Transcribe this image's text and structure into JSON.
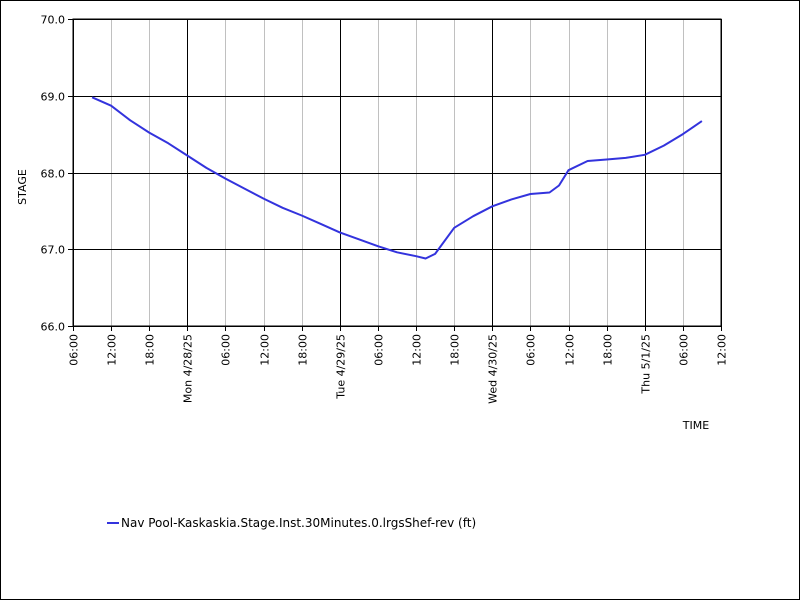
{
  "chart_data": {
    "type": "line",
    "xlabel": "TIME",
    "ylabel": "STAGE",
    "x_range": [
      "2025-04-27T06:00",
      "2025-05-01T12:00"
    ],
    "ylim": [
      66.0,
      70.0
    ],
    "y_ticks": [
      66.0,
      67.0,
      68.0,
      69.0,
      70.0
    ],
    "y_tick_labels": [
      "66.0",
      "67.0",
      "68.0",
      "69.0",
      "70.0"
    ],
    "x_ticks": [
      {
        "t": "2025-04-27T06:00",
        "label": "06:00"
      },
      {
        "t": "2025-04-27T12:00",
        "label": "12:00"
      },
      {
        "t": "2025-04-27T18:00",
        "label": "18:00"
      },
      {
        "t": "2025-04-28T00:00",
        "label": "Mon 4/28/25"
      },
      {
        "t": "2025-04-28T06:00",
        "label": "06:00"
      },
      {
        "t": "2025-04-28T12:00",
        "label": "12:00"
      },
      {
        "t": "2025-04-28T18:00",
        "label": "18:00"
      },
      {
        "t": "2025-04-29T00:00",
        "label": "Tue 4/29/25"
      },
      {
        "t": "2025-04-29T06:00",
        "label": "06:00"
      },
      {
        "t": "2025-04-29T12:00",
        "label": "12:00"
      },
      {
        "t": "2025-04-29T18:00",
        "label": "18:00"
      },
      {
        "t": "2025-04-30T00:00",
        "label": "Wed 4/30/25"
      },
      {
        "t": "2025-04-30T06:00",
        "label": "06:00"
      },
      {
        "t": "2025-04-30T12:00",
        "label": "12:00"
      },
      {
        "t": "2025-04-30T18:00",
        "label": "18:00"
      },
      {
        "t": "2025-05-01T00:00",
        "label": "Thu 5/1/25"
      },
      {
        "t": "2025-05-01T06:00",
        "label": "06:00"
      },
      {
        "t": "2025-05-01T12:00",
        "label": "12:00"
      }
    ],
    "major_x_ticks": [
      "2025-04-27T06:00",
      "2025-04-28T00:00",
      "2025-04-29T00:00",
      "2025-04-30T00:00",
      "2025-05-01T00:00",
      "2025-05-01T12:00"
    ],
    "grid": true,
    "legend_position": "bottom-left",
    "series": [
      {
        "name": "Nav Pool-Kaskaskia.Stage.Inst.30Minutes.0.lrgsShef-rev (ft)",
        "color": "#3333dd",
        "points": [
          [
            "2025-04-27T09:00",
            68.98
          ],
          [
            "2025-04-27T12:00",
            68.87
          ],
          [
            "2025-04-27T15:00",
            68.68
          ],
          [
            "2025-04-27T18:00",
            68.52
          ],
          [
            "2025-04-27T21:00",
            68.38
          ],
          [
            "2025-04-28T00:00",
            68.22
          ],
          [
            "2025-04-28T03:00",
            68.06
          ],
          [
            "2025-04-28T06:00",
            67.92
          ],
          [
            "2025-04-28T09:00",
            67.79
          ],
          [
            "2025-04-28T12:00",
            67.66
          ],
          [
            "2025-04-28T15:00",
            67.54
          ],
          [
            "2025-04-28T18:00",
            67.44
          ],
          [
            "2025-04-28T21:00",
            67.33
          ],
          [
            "2025-04-29T00:00",
            67.22
          ],
          [
            "2025-04-29T03:00",
            67.13
          ],
          [
            "2025-04-29T06:00",
            67.04
          ],
          [
            "2025-04-29T09:00",
            66.96
          ],
          [
            "2025-04-29T12:00",
            66.91
          ],
          [
            "2025-04-29T13:30",
            66.88
          ],
          [
            "2025-04-29T15:00",
            66.94
          ],
          [
            "2025-04-29T18:00",
            67.28
          ],
          [
            "2025-04-29T21:00",
            67.43
          ],
          [
            "2025-04-30T00:00",
            67.56
          ],
          [
            "2025-04-30T03:00",
            67.65
          ],
          [
            "2025-04-30T06:00",
            67.72
          ],
          [
            "2025-04-30T09:00",
            67.74
          ],
          [
            "2025-04-30T10:30",
            67.83
          ],
          [
            "2025-04-30T12:00",
            68.03
          ],
          [
            "2025-04-30T15:00",
            68.15
          ],
          [
            "2025-04-30T18:00",
            68.17
          ],
          [
            "2025-04-30T21:00",
            68.19
          ],
          [
            "2025-05-01T00:00",
            68.23
          ],
          [
            "2025-05-01T03:00",
            68.35
          ],
          [
            "2025-05-01T06:00",
            68.5
          ],
          [
            "2025-05-01T09:00",
            68.67
          ]
        ]
      }
    ]
  }
}
